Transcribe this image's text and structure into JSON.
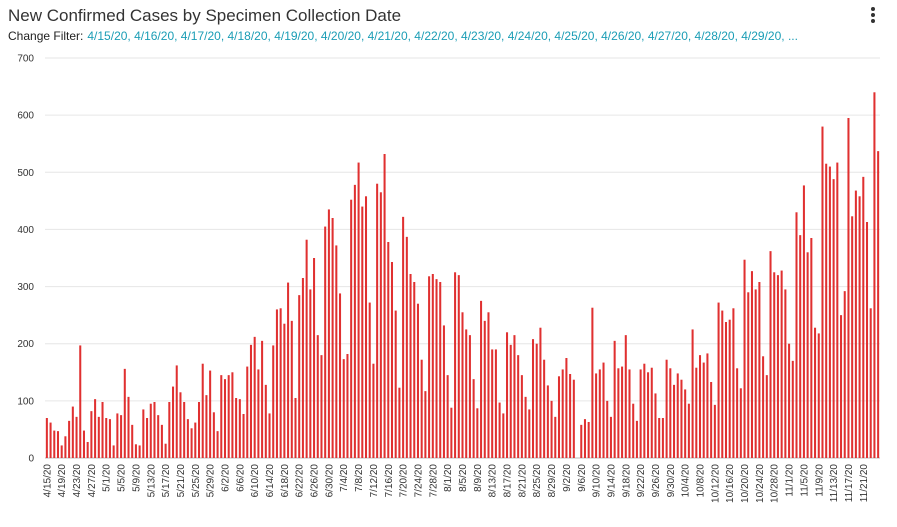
{
  "header": {
    "title": "New Confirmed Cases by Specimen Collection Date",
    "filter_label": "Change Filter:",
    "filter_values": "4/15/20, 4/16/20, 4/17/20, 4/18/20, 4/19/20, 4/20/20, 4/21/20, 4/22/20, 4/23/20, 4/24/20, 4/25/20, 4/26/20, 4/27/20, 4/28/20, 4/29/20, ..."
  },
  "menu": {
    "icon": "more-vertical-icon"
  },
  "colors": {
    "bar": "#e03030",
    "grid": "#e6e6e6",
    "filter_text": "#1a9db5"
  },
  "chart_data": {
    "type": "bar",
    "start_date": "4/15/20",
    "x_tick_labels": [
      "4/15/20",
      "4/19/20",
      "4/23/20",
      "4/27/20",
      "5/1/20",
      "5/5/20",
      "5/9/20",
      "5/13/20",
      "5/17/20",
      "5/21/20",
      "5/25/20",
      "5/29/20",
      "6/2/20",
      "6/6/20",
      "6/10/20",
      "6/14/20",
      "6/18/20",
      "6/22/20",
      "6/26/20",
      "6/30/20",
      "7/4/20",
      "7/8/20",
      "7/12/20",
      "7/16/20",
      "7/20/20",
      "7/24/20",
      "7/28/20",
      "8/1/20",
      "8/5/20",
      "8/9/20",
      "8/13/20",
      "8/17/20",
      "8/21/20",
      "8/25/20",
      "8/29/20",
      "9/2/20",
      "9/6/20",
      "9/10/20",
      "9/14/20",
      "9/18/20",
      "9/22/20",
      "9/26/20",
      "9/30/20",
      "10/4/20",
      "10/8/20",
      "10/12/20",
      "10/16/20",
      "10/20/20",
      "10/24/20",
      "10/28/20",
      "11/1/20",
      "11/5/20",
      "11/9/20",
      "11/13/20",
      "11/17/20",
      "11/21/20"
    ],
    "y_ticks": [
      0,
      100,
      200,
      300,
      400,
      500,
      600,
      700
    ],
    "ylim": [
      0,
      700
    ],
    "values": [
      70,
      62,
      48,
      47,
      22,
      38,
      65,
      90,
      72,
      197,
      48,
      28,
      82,
      103,
      72,
      98,
      70,
      68,
      22,
      78,
      75,
      156,
      107,
      58,
      24,
      22,
      85,
      70,
      95,
      98,
      75,
      58,
      25,
      98,
      125,
      162,
      115,
      98,
      68,
      52,
      62,
      98,
      165,
      110,
      153,
      80,
      47,
      145,
      138,
      145,
      150,
      105,
      103,
      77,
      160,
      198,
      212,
      155,
      205,
      128,
      78,
      197,
      260,
      262,
      235,
      307,
      240,
      105,
      285,
      315,
      382,
      295,
      350,
      215,
      180,
      405,
      435,
      420,
      372,
      288,
      173,
      182,
      452,
      478,
      517,
      440,
      458,
      272,
      165,
      480,
      465,
      532,
      378,
      343,
      258,
      123,
      422,
      387,
      322,
      308,
      270,
      172,
      117,
      318,
      322,
      313,
      308,
      232,
      145,
      88,
      325,
      320,
      255,
      225,
      215,
      138,
      87,
      275,
      240,
      255,
      190,
      190,
      97,
      78,
      220,
      198,
      215,
      180,
      145,
      107,
      85,
      208,
      200,
      228,
      172,
      127,
      100,
      72,
      143,
      155,
      175,
      147,
      137,
      0,
      58,
      68,
      63,
      263,
      148,
      155,
      167,
      100,
      72,
      205,
      157,
      160,
      215,
      155,
      95,
      65,
      155,
      165,
      150,
      158,
      113,
      70,
      70,
      172,
      157,
      128,
      148,
      137,
      120,
      95,
      225,
      158,
      180,
      167,
      183,
      133,
      93,
      272,
      258,
      238,
      242,
      262,
      157,
      122,
      347,
      290,
      327,
      295,
      308,
      178,
      145,
      362,
      325,
      320,
      328,
      295,
      200,
      170,
      430,
      390,
      477,
      360,
      385,
      228,
      218,
      580,
      515,
      510,
      488,
      517,
      250,
      292,
      595,
      423,
      468,
      458,
      492,
      413,
      262,
      640,
      537
    ],
    "title": "",
    "xlabel": "",
    "ylabel": "",
    "grid": true,
    "legend": "none"
  }
}
